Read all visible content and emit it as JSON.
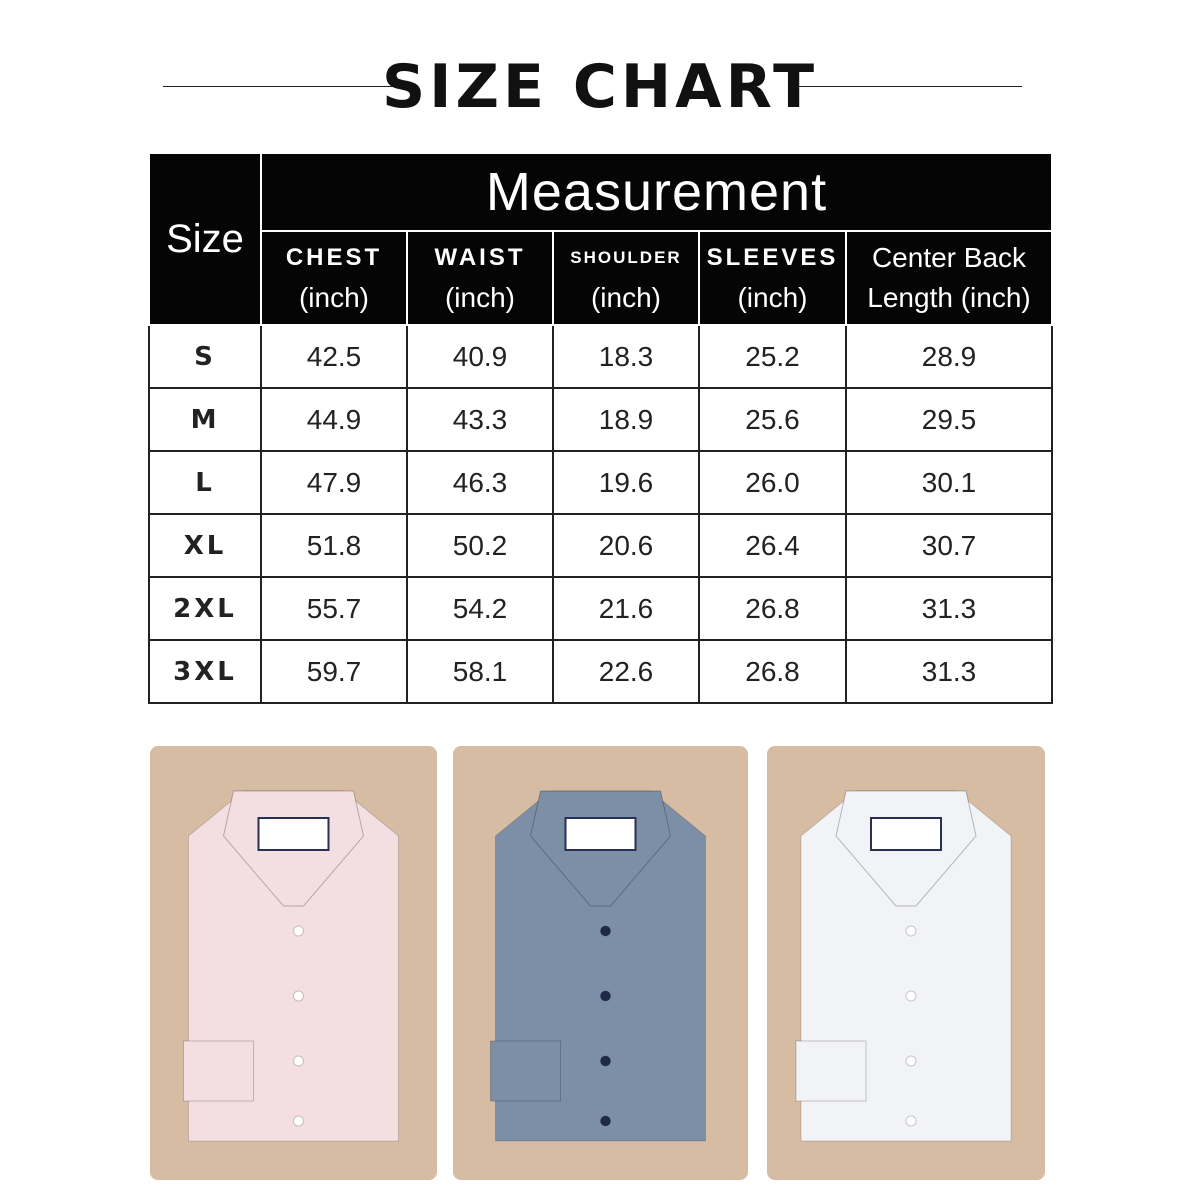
{
  "title": "SIZE CHART",
  "header": {
    "size": "Size",
    "measurement": "Measurement",
    "columns": [
      {
        "name": "CHEST",
        "unit": "(inch)"
      },
      {
        "name": "WAIST",
        "unit": "(inch)"
      },
      {
        "name": "SHOULDER",
        "unit": "(inch)"
      },
      {
        "name": "SLEEVES",
        "unit": "(inch)"
      },
      {
        "name": "Center Back",
        "unit": "Length (inch)"
      }
    ]
  },
  "rows": [
    {
      "size": "S",
      "values": [
        "42.5",
        "40.9",
        "18.3",
        "25.2",
        "28.9"
      ]
    },
    {
      "size": "M",
      "values": [
        "44.9",
        "43.3",
        "18.9",
        "25.6",
        "29.5"
      ]
    },
    {
      "size": "L",
      "values": [
        "47.9",
        "46.3",
        "19.6",
        "26.0",
        "30.1"
      ]
    },
    {
      "size": "XL",
      "values": [
        "51.8",
        "50.2",
        "20.6",
        "26.4",
        "30.7"
      ]
    },
    {
      "size": "2XL",
      "values": [
        "55.7",
        "54.2",
        "21.6",
        "26.8",
        "31.3"
      ]
    },
    {
      "size": "3XL",
      "values": [
        "59.7",
        "58.1",
        "22.6",
        "26.8",
        "31.3"
      ]
    }
  ],
  "shirts": [
    {
      "name": "pink-check-shirt",
      "color": "#f3dfe2",
      "button": "#ffffff"
    },
    {
      "name": "blue-shirt",
      "color": "#7d8fa6",
      "button": "#1e2a48"
    },
    {
      "name": "white-stripe-shirt",
      "color": "#f2f3f7",
      "button": "#ffffff"
    }
  ]
}
